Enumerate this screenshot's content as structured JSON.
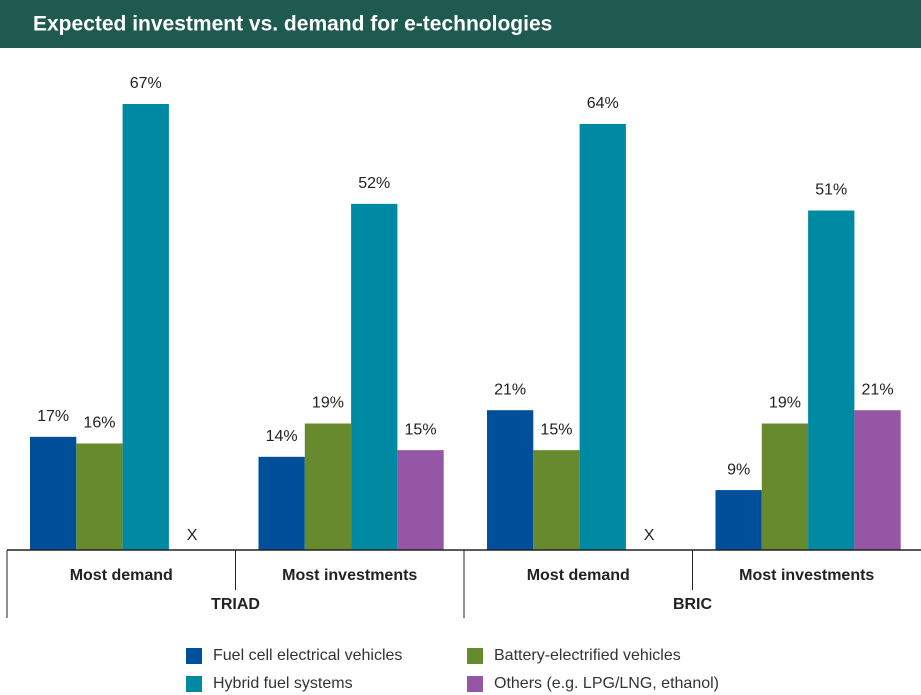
{
  "chart_data": {
    "type": "bar",
    "title": "Expected investment vs. demand for e-technologies",
    "categories": [
      "Most demand",
      "Most investments",
      "Most demand",
      "Most investments"
    ],
    "groups": [
      "TRIAD",
      "BRIC"
    ],
    "series": [
      {
        "name": "Fuel cell electrical vehicles",
        "color": "#004f9a",
        "values": [
          17,
          14,
          21,
          9
        ],
        "value_labels": [
          "17%",
          "14%",
          "21%",
          "9%"
        ]
      },
      {
        "name": "Battery-electrified vehicles",
        "color": "#688a2e",
        "values": [
          16,
          19,
          15,
          19
        ],
        "value_labels": [
          "16%",
          "19%",
          "15%",
          "19%"
        ]
      },
      {
        "name": "Hybrid fuel systems",
        "color": "#0089a3",
        "values": [
          67,
          52,
          64,
          51
        ],
        "value_labels": [
          "67%",
          "52%",
          "64%",
          "51%"
        ]
      },
      {
        "name": "Others (e.g. LPG/LNG, ethanol)",
        "color": "#9557a5",
        "values": [
          null,
          15,
          null,
          21
        ],
        "value_labels": [
          "X",
          "15%",
          "X",
          "21%"
        ]
      }
    ]
  }
}
